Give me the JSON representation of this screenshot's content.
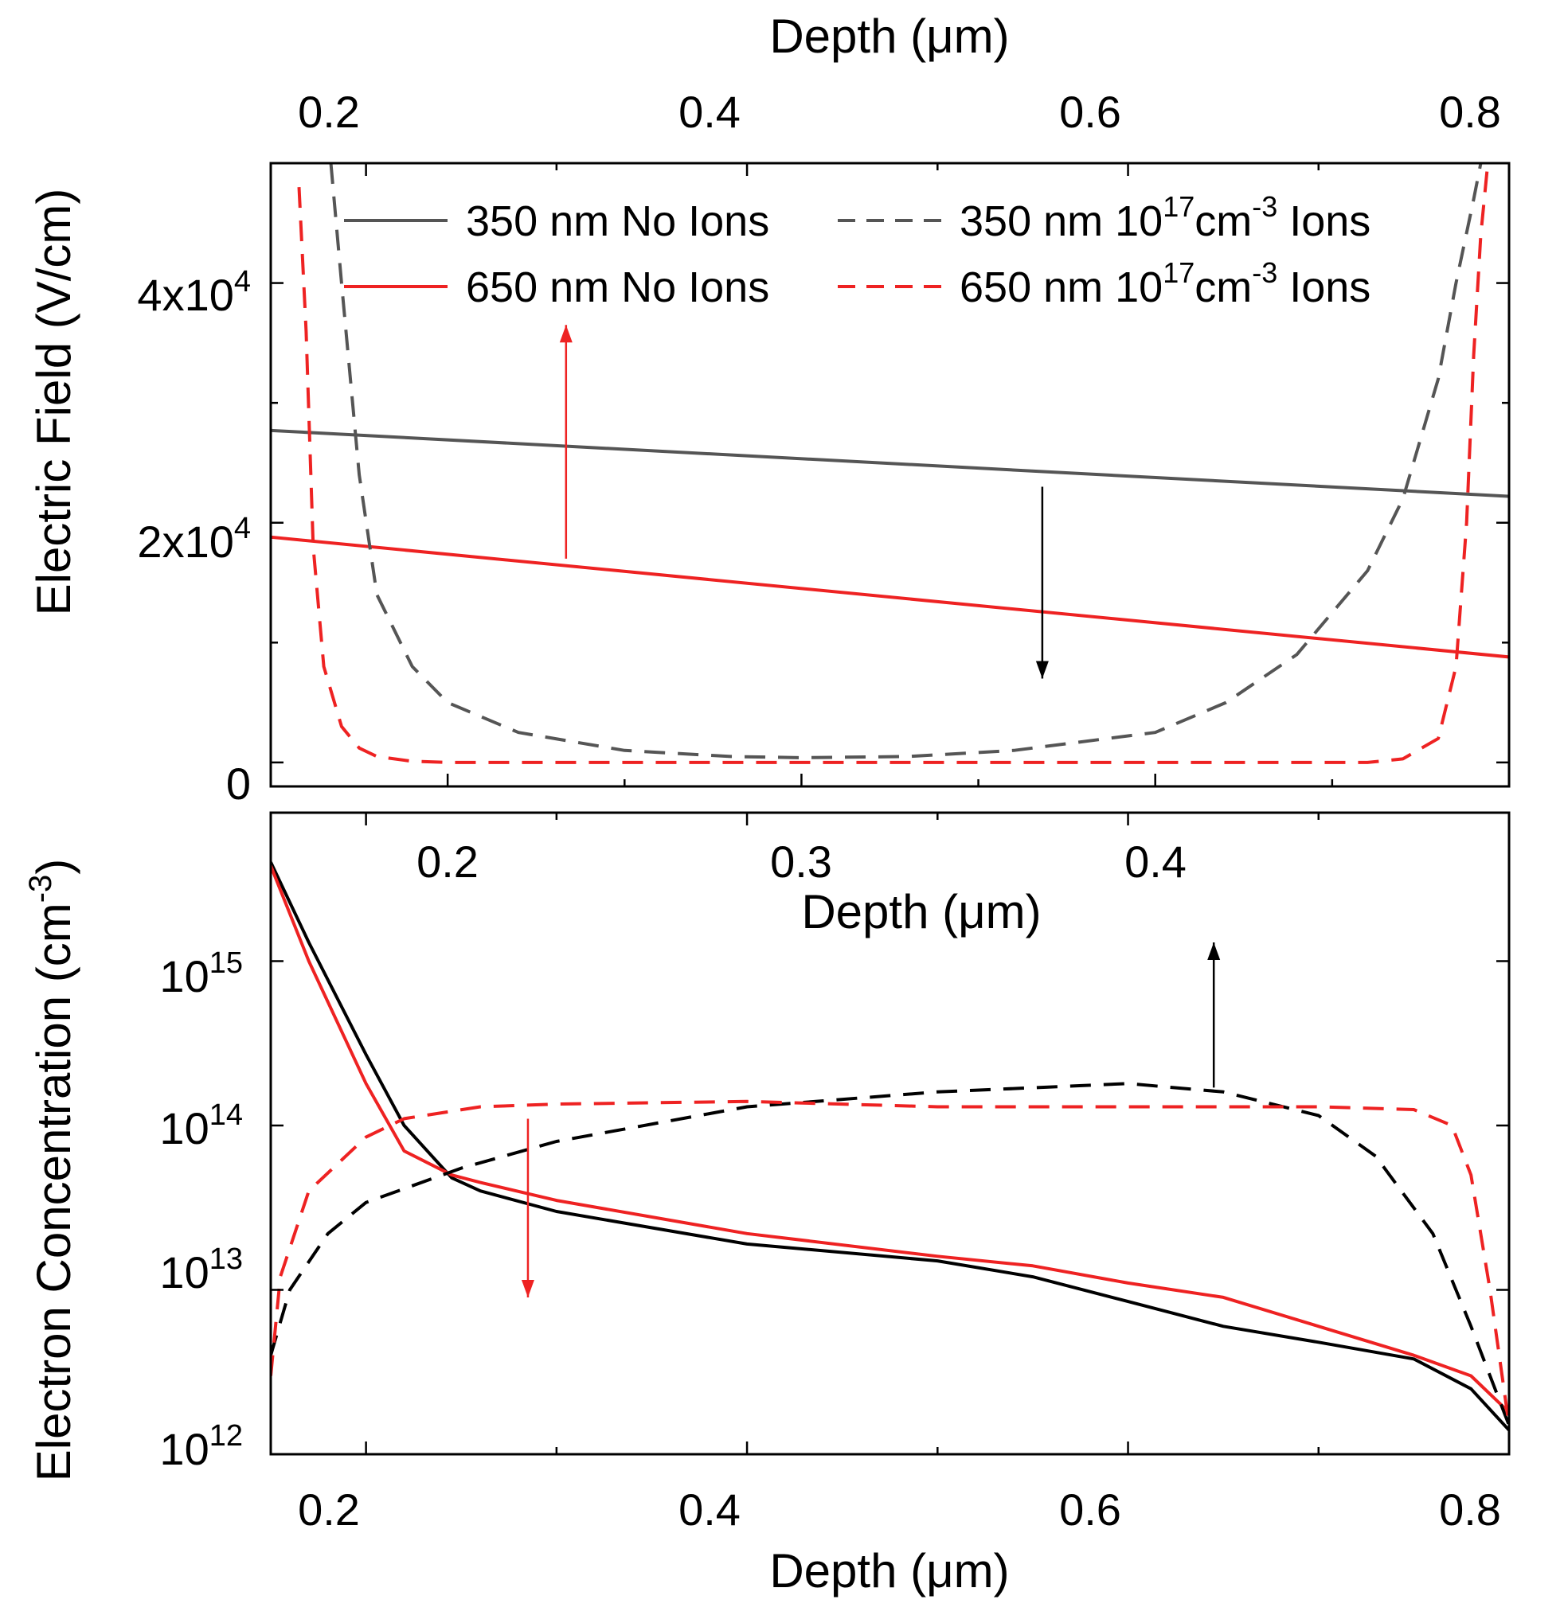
{
  "chart_data": [
    {
      "type": "line",
      "panel": "top",
      "ylabel": "Electric Field (V/cm)",
      "top_axis": {
        "title": "Depth (μm)",
        "range": [
          0.15,
          0.8
        ],
        "ticks": [
          0.2,
          0.4,
          0.6,
          0.8
        ],
        "tick_labels": [
          "0.2",
          "0.4",
          "0.6",
          "0.8"
        ]
      },
      "bottom_axis": {
        "title": "Depth (μm)",
        "range": [
          0.15,
          0.5
        ],
        "ticks": [
          0.2,
          0.3,
          0.4
        ],
        "tick_labels": [
          "0.2",
          "0.3",
          "0.4"
        ]
      },
      "ylim": [
        -2000,
        50000
      ],
      "yticks": [
        0,
        20000,
        40000
      ],
      "ytick_labels": [
        {
          "base": "0",
          "exp": ""
        },
        {
          "base": "2x10",
          "exp": "4"
        },
        {
          "base": "4x10",
          "exp": "4"
        }
      ],
      "legend": {
        "placement": "top",
        "entries": [
          {
            "label": "350 nm No Ions",
            "color": "#555555",
            "dash": "solid"
          },
          {
            "label_base": "350 nm 10",
            "label_sup": "17",
            "label_mid": "cm",
            "label_sup2": "-3",
            "label_end": " Ions",
            "color": "#555555",
            "dash": "dashed"
          },
          {
            "label": "650 nm No Ions",
            "color": "#ee2222",
            "dash": "solid"
          },
          {
            "label_base": "650 nm 10",
            "label_sup": "17",
            "label_mid": "cm",
            "label_sup2": "-3",
            "label_end": " Ions",
            "color": "#ee2222",
            "dash": "dashed"
          }
        ]
      },
      "series": [
        {
          "name": "350 nm No Ions",
          "color": "#555555",
          "dash": "solid",
          "x_axis": "top",
          "x": [
            0.15,
            0.8
          ],
          "y": [
            27700,
            22200
          ]
        },
        {
          "name": "650 nm No Ions",
          "color": "#ee2222",
          "dash": "solid",
          "x_axis": "top",
          "x": [
            0.15,
            0.8
          ],
          "y": [
            18800,
            8800
          ]
        },
        {
          "name": "350 nm 10^17 cm^-3 Ions",
          "color": "#555555",
          "dash": "dashed",
          "x_axis": "bottom",
          "x": [
            0.167,
            0.17,
            0.175,
            0.18,
            0.19,
            0.2,
            0.22,
            0.25,
            0.28,
            0.3,
            0.33,
            0.36,
            0.4,
            0.42,
            0.44,
            0.46,
            0.47,
            0.48,
            0.485,
            0.49,
            0.492
          ],
          "y": [
            50000,
            40000,
            24000,
            14000,
            8000,
            5000,
            2500,
            1000,
            500,
            400,
            500,
            1000,
            2500,
            5000,
            9000,
            16000,
            22000,
            32000,
            40000,
            47000,
            50000
          ]
        },
        {
          "name": "650 nm 10^17 cm^-3 Ions",
          "color": "#ee2222",
          "dash": "dashed",
          "x_axis": "bottom",
          "x": [
            0.158,
            0.16,
            0.162,
            0.165,
            0.17,
            0.175,
            0.18,
            0.19,
            0.2,
            0.3,
            0.4,
            0.46,
            0.47,
            0.48,
            0.485,
            0.488,
            0.49,
            0.492,
            0.494
          ],
          "y": [
            48000,
            36000,
            18000,
            8000,
            3000,
            1200,
            500,
            100,
            0,
            0,
            0,
            0,
            300,
            2000,
            8000,
            20000,
            34000,
            44000,
            50000
          ]
        }
      ],
      "annotations": [
        {
          "type": "arrow",
          "color": "#ee2222",
          "axis": "top",
          "x": 0.305,
          "y_from": 17000,
          "y_to": 36500
        },
        {
          "type": "arrow",
          "color": "#000000",
          "axis": "top",
          "x": 0.555,
          "y_from": 23000,
          "y_to": 7000
        }
      ]
    },
    {
      "type": "line",
      "panel": "bottom",
      "xlabel": "Depth (μm)",
      "ylabel": "Electron Concentration (cm",
      "ylabel_sup": "-3",
      "ylabel_end": ")",
      "xlim": [
        0.15,
        0.8
      ],
      "xticks": [
        0.2,
        0.4,
        0.6,
        0.8
      ],
      "xtick_labels": [
        "0.2",
        "0.4",
        "0.6",
        "0.8"
      ],
      "yscale": "log",
      "ylim": [
        1000000000000.0,
        8000000000000000.0
      ],
      "yticks": [
        1000000000000.0,
        10000000000000.0,
        100000000000000.0,
        1000000000000000.0
      ],
      "ytick_labels": [
        {
          "base": "10",
          "exp": "12"
        },
        {
          "base": "10",
          "exp": "13"
        },
        {
          "base": "10",
          "exp": "14"
        },
        {
          "base": "10",
          "exp": "15"
        }
      ],
      "series": [
        {
          "name": "350 nm No Ions",
          "color": "#000000",
          "dash": "solid",
          "x": [
            0.15,
            0.17,
            0.2,
            0.22,
            0.245,
            0.26,
            0.3,
            0.4,
            0.5,
            0.55,
            0.6,
            0.65,
            0.7,
            0.75,
            0.78,
            0.8
          ],
          "y": [
            4000000000000000.0,
            1300000000000000.0,
            270000000000000.0,
            100000000000000.0,
            48000000000000.0,
            40000000000000.0,
            30000000000000.0,
            19000000000000.0,
            15000000000000.0,
            12000000000000.0,
            8500000000000.0,
            6000000000000.0,
            4800000000000.0,
            3800000000000.0,
            2500000000000.0,
            1400000000000.0
          ]
        },
        {
          "name": "650 nm No Ions",
          "color": "#ee2222",
          "dash": "solid",
          "x": [
            0.15,
            0.17,
            0.2,
            0.22,
            0.245,
            0.26,
            0.3,
            0.4,
            0.5,
            0.55,
            0.6,
            0.65,
            0.7,
            0.75,
            0.78,
            0.8
          ],
          "y": [
            3800000000000000.0,
            1000000000000000.0,
            180000000000000.0,
            70000000000000.0,
            50000000000000.0,
            45000000000000.0,
            35000000000000.0,
            22000000000000.0,
            16000000000000.0,
            14000000000000.0,
            11000000000000.0,
            9000000000000.0,
            6000000000000.0,
            4000000000000.0,
            3000000000000.0,
            1800000000000.0
          ]
        },
        {
          "name": "350 nm 10^17 cm^-3 Ions",
          "color": "#000000",
          "dash": "dashed",
          "x": [
            0.15,
            0.16,
            0.18,
            0.2,
            0.25,
            0.3,
            0.4,
            0.5,
            0.6,
            0.65,
            0.7,
            0.73,
            0.76,
            0.78,
            0.79,
            0.8
          ],
          "y": [
            4000000000000.0,
            10000000000000.0,
            22000000000000.0,
            34000000000000.0,
            55000000000000.0,
            80000000000000.0,
            130000000000000.0,
            160000000000000.0,
            180000000000000.0,
            160000000000000.0,
            115000000000000.0,
            65000000000000.0,
            22000000000000.0,
            6000000000000.0,
            3000000000000.0,
            1500000000000.0
          ]
        },
        {
          "name": "650 nm 10^17 cm^-3 Ions",
          "color": "#ee2222",
          "dash": "dashed",
          "x": [
            0.15,
            0.155,
            0.17,
            0.2,
            0.22,
            0.26,
            0.3,
            0.4,
            0.5,
            0.6,
            0.7,
            0.75,
            0.77,
            0.78,
            0.79,
            0.8
          ],
          "y": [
            3000000000000.0,
            12000000000000.0,
            40000000000000.0,
            85000000000000.0,
            110000000000000.0,
            130000000000000.0,
            135000000000000.0,
            140000000000000.0,
            130000000000000.0,
            130000000000000.0,
            130000000000000.0,
            125000000000000.0,
            100000000000000.0,
            50000000000000.0,
            10000000000000.0,
            1500000000000.0
          ]
        }
      ],
      "annotations": [
        {
          "type": "arrow",
          "color": "#000000",
          "x": 0.645,
          "y_from": 170000000000000.0,
          "y_to": 1300000000000000.0
        },
        {
          "type": "arrow",
          "color": "#ee2222",
          "x": 0.285,
          "y_from": 110000000000000.0,
          "y_to": 9000000000000.0
        }
      ]
    }
  ]
}
